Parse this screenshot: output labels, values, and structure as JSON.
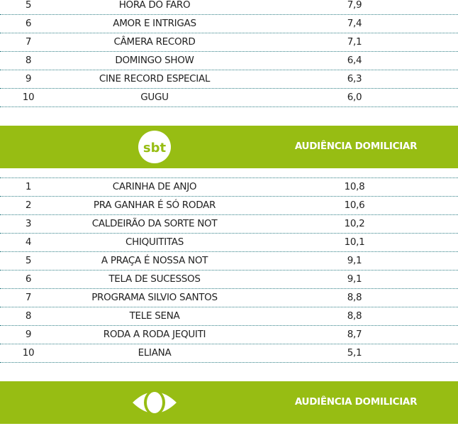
{
  "record_rows": [
    {
      "rank": "5",
      "program": "HORA DO FARO",
      "value": "7,9"
    },
    {
      "rank": "6",
      "program": "AMOR E INTRIGAS",
      "value": "7,4"
    },
    {
      "rank": "7",
      "program": "CÂMERA RECORD",
      "value": "7,1"
    },
    {
      "rank": "8",
      "program": "DOMINGO SHOW",
      "value": "6,4"
    },
    {
      "rank": "9",
      "program": "CINE RECORD ESPECIAL",
      "value": "6,3"
    },
    {
      "rank": "10",
      "program": "GUGU",
      "value": "6,0"
    }
  ],
  "sbt": {
    "logo_text": "sbt",
    "header": "AUDIÊNCIA DOMILICIAR",
    "rows": [
      {
        "rank": "1",
        "program": "CARINHA DE ANJO",
        "value": "10,8"
      },
      {
        "rank": "2",
        "program": "PRA GANHAR É SÓ RODAR",
        "value": "10,6"
      },
      {
        "rank": "3",
        "program": "CALDEIRÃO DA SORTE NOT",
        "value": "10,2"
      },
      {
        "rank": "4",
        "program": "CHIQUITITAS",
        "value": "10,1"
      },
      {
        "rank": "5",
        "program": "A PRAÇA É NOSSA NOT",
        "value": "9,1"
      },
      {
        "rank": "6",
        "program": "TELA DE SUCESSOS",
        "value": "9,1"
      },
      {
        "rank": "7",
        "program": "PROGRAMA SILVIO SANTOS",
        "value": "8,8"
      },
      {
        "rank": "8",
        "program": "TELE SENA",
        "value": "8,8"
      },
      {
        "rank": "9",
        "program": "RODA A RODA JEQUITI",
        "value": "8,7"
      },
      {
        "rank": "10",
        "program": "ELIANA",
        "value": "5,1"
      }
    ]
  },
  "band": {
    "header": "AUDIÊNCIA DOMILICIAR"
  },
  "colors": {
    "accent": "#97bd13",
    "divider": "#2f7f86"
  }
}
